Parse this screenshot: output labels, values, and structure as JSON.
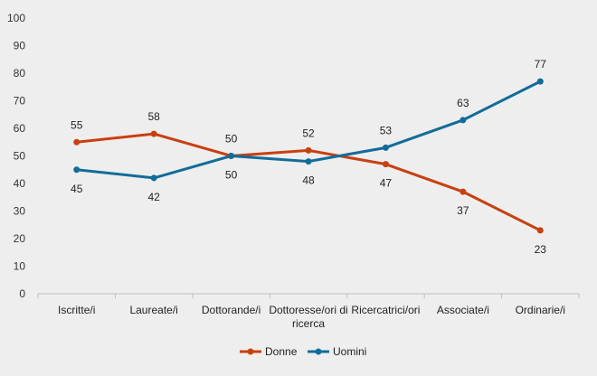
{
  "chart_data": {
    "type": "line",
    "categories": [
      "Iscritte/i",
      "Laureate/i",
      "Dottorande/i",
      [
        "Dottoresse/ori di",
        "ricerca"
      ],
      "Ricercatrici/ori",
      "Associate/i",
      "Ordinarie/i"
    ],
    "ylim": [
      0,
      100
    ],
    "yticks": [
      0,
      10,
      20,
      30,
      40,
      50,
      60,
      70,
      80,
      90,
      100
    ],
    "grid": false,
    "legend_position": "bottom",
    "series": [
      {
        "name": "Donne",
        "color": "#c8400f",
        "values": [
          55,
          58,
          50,
          52,
          47,
          37,
          23
        ]
      },
      {
        "name": "Uomini",
        "color": "#126c99",
        "values": [
          45,
          42,
          50,
          48,
          53,
          63,
          77
        ]
      }
    ]
  }
}
